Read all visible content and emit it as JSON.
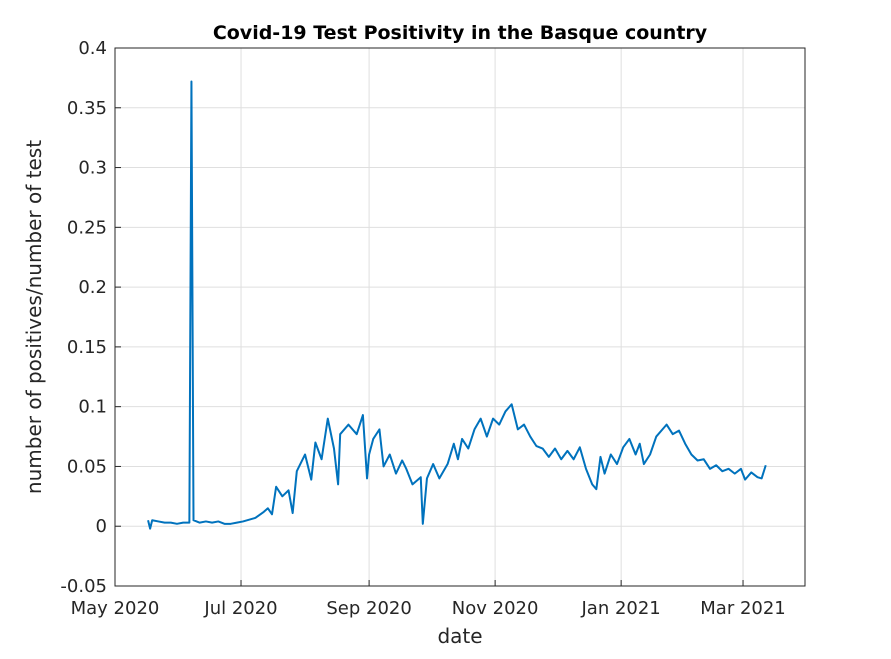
{
  "chart_data": {
    "type": "line",
    "title": "Covid-19 Test Positivity in the Basque country",
    "xlabel": "date",
    "ylabel": "number of positives/number of test",
    "xlim": [
      "2020-05-01",
      "2021-03-31"
    ],
    "xticks": [
      {
        "value": "2020-05-01",
        "label": "May 2020"
      },
      {
        "value": "2020-07-01",
        "label": "Jul 2020"
      },
      {
        "value": "2020-09-01",
        "label": "Sep 2020"
      },
      {
        "value": "2020-11-01",
        "label": "Nov 2020"
      },
      {
        "value": "2021-01-01",
        "label": "Jan 2021"
      },
      {
        "value": "2021-03-01",
        "label": "Mar 2021"
      }
    ],
    "ylim": [
      -0.05,
      0.4
    ],
    "yticks": [
      -0.05,
      0,
      0.05,
      0.1,
      0.15,
      0.2,
      0.25,
      0.3,
      0.35,
      0.4
    ],
    "grid": true,
    "x": [
      "2020-05-17",
      "2020-05-18",
      "2020-05-19",
      "2020-05-22",
      "2020-05-25",
      "2020-05-28",
      "2020-05-31",
      "2020-06-03",
      "2020-06-06",
      "2020-06-07",
      "2020-06-08",
      "2020-06-11",
      "2020-06-14",
      "2020-06-17",
      "2020-06-20",
      "2020-06-23",
      "2020-06-26",
      "2020-06-29",
      "2020-07-02",
      "2020-07-08",
      "2020-07-12",
      "2020-07-14",
      "2020-07-16",
      "2020-07-18",
      "2020-07-21",
      "2020-07-24",
      "2020-07-26",
      "2020-07-28",
      "2020-08-01",
      "2020-08-04",
      "2020-08-06",
      "2020-08-09",
      "2020-08-12",
      "2020-08-15",
      "2020-08-17",
      "2020-08-18",
      "2020-08-22",
      "2020-08-26",
      "2020-08-29",
      "2020-08-31",
      "2020-09-01",
      "2020-09-03",
      "2020-09-06",
      "2020-09-08",
      "2020-09-11",
      "2020-09-14",
      "2020-09-17",
      "2020-09-19",
      "2020-09-22",
      "2020-09-26",
      "2020-09-27",
      "2020-09-29",
      "2020-10-02",
      "2020-10-05",
      "2020-10-09",
      "2020-10-12",
      "2020-10-14",
      "2020-10-16",
      "2020-10-19",
      "2020-10-22",
      "2020-10-25",
      "2020-10-28",
      "2020-10-31",
      "2020-11-03",
      "2020-11-06",
      "2020-11-09",
      "2020-11-12",
      "2020-11-15",
      "2020-11-18",
      "2020-11-21",
      "2020-11-24",
      "2020-11-27",
      "2020-11-30",
      "2020-12-03",
      "2020-12-06",
      "2020-12-09",
      "2020-12-12",
      "2020-12-15",
      "2020-12-18",
      "2020-12-20",
      "2020-12-22",
      "2020-12-24",
      "2020-12-27",
      "2020-12-30",
      "2021-01-02",
      "2021-01-05",
      "2021-01-08",
      "2021-01-10",
      "2021-01-12",
      "2021-01-15",
      "2021-01-18",
      "2021-01-21",
      "2021-01-23",
      "2021-01-26",
      "2021-01-29",
      "2021-02-01",
      "2021-02-04",
      "2021-02-07",
      "2021-02-10",
      "2021-02-13",
      "2021-02-16",
      "2021-02-19",
      "2021-02-22",
      "2021-02-25",
      "2021-02-28",
      "2021-03-02",
      "2021-03-05",
      "2021-03-08",
      "2021-03-10",
      "2021-03-12"
    ],
    "series": [
      {
        "name": "positivity",
        "color": "#0072bd",
        "values": [
          0.005,
          -0.002,
          0.005,
          0.004,
          0.003,
          0.003,
          0.002,
          0.003,
          0.003,
          0.372,
          0.005,
          0.003,
          0.004,
          0.003,
          0.004,
          0.002,
          0.002,
          0.003,
          0.004,
          0.007,
          0.012,
          0.015,
          0.01,
          0.033,
          0.025,
          0.03,
          0.011,
          0.046,
          0.06,
          0.039,
          0.07,
          0.056,
          0.09,
          0.065,
          0.035,
          0.077,
          0.085,
          0.077,
          0.093,
          0.04,
          0.06,
          0.073,
          0.081,
          0.05,
          0.06,
          0.044,
          0.055,
          0.048,
          0.035,
          0.041,
          0.002,
          0.04,
          0.052,
          0.04,
          0.052,
          0.069,
          0.056,
          0.073,
          0.065,
          0.081,
          0.09,
          0.075,
          0.09,
          0.085,
          0.096,
          0.102,
          0.081,
          0.085,
          0.075,
          0.067,
          0.065,
          0.058,
          0.065,
          0.056,
          0.063,
          0.056,
          0.066,
          0.048,
          0.035,
          0.031,
          0.058,
          0.044,
          0.06,
          0.052,
          0.066,
          0.073,
          0.06,
          0.069,
          0.052,
          0.06,
          0.075,
          0.081,
          0.085,
          0.077,
          0.08,
          0.069,
          0.06,
          0.055,
          0.056,
          0.048,
          0.051,
          0.046,
          0.048,
          0.044,
          0.048,
          0.039,
          0.045,
          0.041,
          0.04,
          0.051
        ]
      }
    ]
  }
}
